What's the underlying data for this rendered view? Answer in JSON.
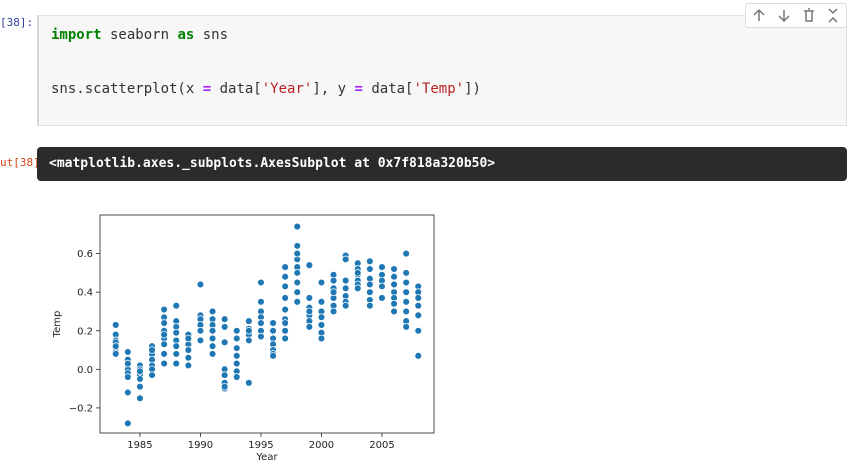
{
  "notebook": {
    "in_prompt": "[38]:",
    "code_lines": [
      [
        {
          "text": "import",
          "color": "#008000",
          "bold": true
        },
        {
          "text": " seaborn ",
          "color": "#333333",
          "bold": false
        },
        {
          "text": "as",
          "color": "#008000",
          "bold": true
        },
        {
          "text": " sns",
          "color": "#333333",
          "bold": false
        }
      ],
      [
        {
          "text": "sns.scatterplot(x ",
          "color": "#333333",
          "bold": false
        },
        {
          "text": "=",
          "color": "#aa22ff",
          "bold": true
        },
        {
          "text": " data[",
          "color": "#333333",
          "bold": false
        },
        {
          "text": "'Year'",
          "color": "#ba2121",
          "bold": false
        },
        {
          "text": "], y ",
          "color": "#333333",
          "bold": false
        },
        {
          "text": "=",
          "color": "#aa22ff",
          "bold": true
        },
        {
          "text": " data[",
          "color": "#333333",
          "bold": false
        },
        {
          "text": "'Temp'",
          "color": "#ba2121",
          "bold": false
        },
        {
          "text": "])",
          "color": "#333333",
          "bold": false
        }
      ]
    ],
    "out_prompt": "ut[38]",
    "output_text": "<matplotlib.axes._subplots.AxesSubplot at 0x7f818a320b50>"
  },
  "chart_data": {
    "type": "scatter",
    "x_label": "Year",
    "y_label": "Temp",
    "color": "#1f77b4",
    "xlim": [
      1981.7,
      2009.3
    ],
    "ylim": [
      -0.33,
      0.8
    ],
    "xticks": [
      1985,
      1990,
      1995,
      2000,
      2005
    ],
    "yticks": [
      {
        "value": -0.2,
        "label": "−0.2"
      },
      {
        "value": 0,
        "label": "0.0"
      },
      0.2,
      0.4,
      0.6
    ],
    "series": [
      {
        "x": [
          1983,
          1983,
          1983,
          1983,
          1983,
          1983,
          1983,
          1983,
          1983,
          1984,
          1984,
          1984,
          1984,
          1984,
          1984,
          1984,
          1984,
          1984,
          1985,
          1985,
          1985,
          1985,
          1985,
          1985,
          1985,
          1986,
          1986,
          1986,
          1986,
          1986,
          1986,
          1986,
          1987,
          1987,
          1987,
          1987,
          1987,
          1987,
          1987,
          1987,
          1987,
          1988,
          1988,
          1988,
          1988,
          1988,
          1988,
          1988,
          1988,
          1989,
          1989,
          1989,
          1989,
          1989,
          1989,
          1989,
          1990,
          1990,
          1990,
          1990,
          1990,
          1990,
          1991,
          1991,
          1991,
          1991,
          1991,
          1991,
          1991,
          1992,
          1992,
          1992,
          1992,
          1992,
          1992,
          1992,
          1992,
          1993,
          1993,
          1993,
          1993,
          1993,
          1993,
          1993,
          1994,
          1994,
          1994,
          1994,
          1994,
          1994,
          1995,
          1995,
          1995,
          1995,
          1995,
          1995,
          1995,
          1996,
          1996,
          1996,
          1996,
          1996,
          1996,
          1996,
          1997,
          1997,
          1997,
          1997,
          1997,
          1997,
          1997,
          1997,
          1997,
          1998,
          1998,
          1998,
          1998,
          1998,
          1998,
          1998,
          1998,
          1998,
          1999,
          1999,
          1999,
          1999,
          1999,
          1999,
          1999,
          2000,
          2000,
          2000,
          2000,
          2000,
          2000,
          2000,
          2001,
          2001,
          2001,
          2001,
          2001,
          2001,
          2001,
          2002,
          2002,
          2002,
          2002,
          2002,
          2002,
          2002,
          2003,
          2003,
          2003,
          2003,
          2003,
          2003,
          2003,
          2004,
          2004,
          2004,
          2004,
          2004,
          2004,
          2004,
          2005,
          2005,
          2005,
          2005,
          2005,
          2006,
          2006,
          2006,
          2006,
          2006,
          2006,
          2006,
          2007,
          2007,
          2007,
          2007,
          2007,
          2007,
          2007,
          2007,
          2008,
          2008,
          2008,
          2008,
          2008,
          2008,
          2008
        ],
        "values": [
          0.23,
          0.18,
          0.15,
          0.13,
          0.11,
          0.09,
          0.08,
          0.14,
          0.12,
          0.09,
          0.05,
          0.02,
          0.0,
          -0.02,
          -0.04,
          -0.12,
          -0.28,
          0.03,
          0.02,
          0.0,
          -0.03,
          -0.05,
          -0.09,
          -0.15,
          -0.01,
          0.12,
          0.08,
          0.05,
          0.02,
          0.0,
          -0.03,
          0.1,
          0.31,
          0.27,
          0.24,
          0.2,
          0.16,
          0.13,
          0.08,
          0.03,
          0.18,
          0.33,
          0.25,
          0.22,
          0.19,
          0.15,
          0.12,
          0.08,
          0.03,
          0.18,
          0.15,
          0.13,
          0.1,
          0.06,
          0.02,
          0.16,
          0.44,
          0.28,
          0.26,
          0.23,
          0.2,
          0.15,
          0.3,
          0.26,
          0.23,
          0.2,
          0.16,
          0.12,
          0.08,
          0.26,
          0.22,
          0.14,
          0.0,
          -0.03,
          -0.07,
          -0.1,
          -0.09,
          0.2,
          0.16,
          0.11,
          0.07,
          0.03,
          -0.01,
          -0.04,
          0.25,
          0.21,
          0.18,
          0.15,
          -0.07,
          0.2,
          0.45,
          0.35,
          0.3,
          0.27,
          0.24,
          0.2,
          0.17,
          0.24,
          0.16,
          0.13,
          0.1,
          0.08,
          0.07,
          0.2,
          0.53,
          0.48,
          0.43,
          0.37,
          0.31,
          0.26,
          0.2,
          0.16,
          0.24,
          0.74,
          0.64,
          0.57,
          0.53,
          0.5,
          0.45,
          0.4,
          0.35,
          0.6,
          0.54,
          0.37,
          0.32,
          0.28,
          0.25,
          0.22,
          0.3,
          0.45,
          0.35,
          0.3,
          0.27,
          0.23,
          0.19,
          0.16,
          0.49,
          0.46,
          0.42,
          0.37,
          0.33,
          0.3,
          0.4,
          0.59,
          0.57,
          0.46,
          0.42,
          0.38,
          0.35,
          0.33,
          0.55,
          0.52,
          0.49,
          0.46,
          0.44,
          0.42,
          0.5,
          0.56,
          0.52,
          0.47,
          0.44,
          0.4,
          0.36,
          0.33,
          0.53,
          0.49,
          0.46,
          0.43,
          0.37,
          0.52,
          0.48,
          0.44,
          0.4,
          0.37,
          0.34,
          0.3,
          0.6,
          0.5,
          0.45,
          0.4,
          0.35,
          0.3,
          0.25,
          0.22,
          0.43,
          0.4,
          0.37,
          0.33,
          0.28,
          0.2,
          0.07
        ]
      }
    ]
  }
}
